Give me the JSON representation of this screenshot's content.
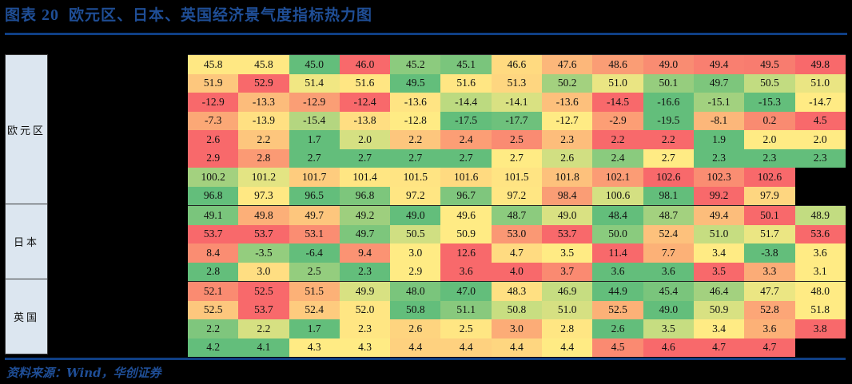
{
  "header": {
    "prefix": "图表",
    "number": "20",
    "title": "欧元区、日本、英国经济景气度指标热力图"
  },
  "source": "资料来源：Wind，华创证券",
  "colors": {
    "title_blue": "#1f4e96",
    "rule_blue": "#0f3f85",
    "label_bg": "#dce6f0",
    "heat_low_green": "#63be7b",
    "heat_mid_yellow": "#ffeb84",
    "heat_high_red": "#f8696b"
  },
  "regions": [
    {
      "name": "欧元区",
      "rows": 8
    },
    {
      "name": "日本",
      "rows": 4
    },
    {
      "name": "英国",
      "rows": 4
    }
  ],
  "chart_data": {
    "type": "heatmap",
    "title": "欧元区、日本、英国经济景气度指标热力图",
    "row_groups": [
      "欧元区",
      "日本",
      "英国"
    ],
    "columns": 13,
    "legend": "green = low, yellow = mid, red = high (per-row color scale)",
    "rows": [
      {
        "group": "欧元区",
        "values": [
          45.8,
          45.8,
          45.0,
          46.0,
          45.2,
          45.1,
          46.6,
          47.6,
          48.6,
          49.0,
          49.4,
          49.5,
          49.8
        ]
      },
      {
        "group": "欧元区",
        "values": [
          51.9,
          52.9,
          51.4,
          51.6,
          49.5,
          51.6,
          51.3,
          50.2,
          51.0,
          50.1,
          49.7,
          50.5,
          51.0
        ]
      },
      {
        "group": "欧元区",
        "values": [
          -12.9,
          -13.3,
          -12.9,
          -12.4,
          -13.6,
          -14.4,
          -14.1,
          -13.6,
          -14.5,
          -16.6,
          -15.1,
          -15.3,
          -14.7
        ]
      },
      {
        "group": "欧元区",
        "values": [
          -7.3,
          -13.9,
          -15.4,
          -13.8,
          -12.8,
          -17.5,
          -17.7,
          -12.7,
          -2.9,
          -19.5,
          -8.1,
          0.2,
          4.5
        ]
      },
      {
        "group": "欧元区",
        "values": [
          2.6,
          2.2,
          1.7,
          2.0,
          2.2,
          2.4,
          2.5,
          2.3,
          2.2,
          2.2,
          1.9,
          2.0,
          2.0
        ]
      },
      {
        "group": "欧元区",
        "values": [
          2.9,
          2.8,
          2.7,
          2.7,
          2.7,
          2.7,
          2.7,
          2.6,
          2.4,
          2.7,
          2.3,
          2.3,
          2.3
        ]
      },
      {
        "group": "欧元区",
        "values": [
          100.2,
          101.2,
          101.7,
          101.4,
          101.5,
          101.6,
          101.5,
          101.8,
          102.1,
          102.6,
          102.3,
          102.6,
          null
        ]
      },
      {
        "group": "欧元区",
        "values": [
          96.8,
          97.3,
          96.5,
          96.8,
          97.2,
          96.7,
          97.2,
          98.4,
          100.6,
          98.1,
          99.2,
          97.9,
          null
        ]
      },
      {
        "group": "日本",
        "values": [
          49.1,
          49.8,
          49.7,
          49.2,
          49.0,
          49.6,
          48.7,
          49.0,
          48.4,
          48.7,
          49.4,
          50.1,
          48.9
        ]
      },
      {
        "group": "日本",
        "values": [
          53.7,
          53.7,
          53.1,
          49.7,
          50.5,
          50.9,
          53.0,
          53.7,
          50.0,
          52.4,
          51.0,
          51.7,
          53.6
        ]
      },
      {
        "group": "日本",
        "values": [
          8.4,
          -3.5,
          -6.4,
          9.4,
          3.0,
          12.6,
          4.7,
          3.5,
          11.4,
          7.7,
          3.4,
          -3.8,
          3.6
        ]
      },
      {
        "group": "日本",
        "values": [
          2.8,
          3.0,
          2.5,
          2.3,
          2.9,
          3.6,
          4.0,
          3.7,
          3.6,
          3.6,
          3.5,
          3.3,
          3.1
        ]
      },
      {
        "group": "英国",
        "values": [
          52.1,
          52.5,
          51.5,
          49.9,
          48.0,
          47.0,
          48.3,
          46.9,
          44.9,
          45.4,
          46.4,
          47.7,
          48.0
        ]
      },
      {
        "group": "英国",
        "values": [
          52.5,
          53.7,
          52.4,
          52.0,
          50.8,
          51.1,
          50.8,
          51.0,
          52.5,
          49.0,
          50.9,
          52.8,
          51.8
        ]
      },
      {
        "group": "英国",
        "values": [
          2.2,
          2.2,
          1.7,
          2.3,
          2.6,
          2.5,
          3.0,
          2.8,
          2.6,
          3.5,
          3.4,
          3.6,
          3.8
        ]
      },
      {
        "group": "英国",
        "values": [
          4.2,
          4.1,
          4.3,
          4.3,
          4.4,
          4.4,
          4.4,
          4.4,
          4.5,
          4.6,
          4.7,
          4.7,
          null
        ]
      }
    ],
    "cell_colors": [
      [
        "#ffe883",
        "#ffe883",
        "#63be7b",
        "#f8696b",
        "#8ccb7e",
        "#7ac57c",
        "#ffda80",
        "#fcb77a",
        "#fa9d75",
        "#f98c72",
        "#f97f70",
        "#f87c6f",
        "#f8696b"
      ],
      [
        "#fdc77d",
        "#f8696b",
        "#f1e783",
        "#ffe683",
        "#63be7b",
        "#ffe683",
        "#fed680",
        "#a3d17f",
        "#eae583",
        "#96cd7e",
        "#7dc67c",
        "#c2dc81",
        "#eae583"
      ],
      [
        "#f8696b",
        "#fcbc7b",
        "#fa9e75",
        "#f8696b",
        "#ffe483",
        "#bcda80",
        "#d9e182",
        "#fdc07c",
        "#f8696b",
        "#63be7b",
        "#a2d17f",
        "#63be7b",
        "#ffeb84"
      ],
      [
        "#fba876",
        "#ffe082",
        "#b4d680",
        "#ffde82",
        "#ffeb84",
        "#63be7b",
        "#6ec17c",
        "#ffeb84",
        "#fc9e75",
        "#63be7b",
        "#fcb77a",
        "#f98b71",
        "#f8696b"
      ],
      [
        "#f8696b",
        "#fdc67d",
        "#63be7b",
        "#d5e082",
        "#fdc67d",
        "#fc9e75",
        "#fa8b72",
        "#fdbd7b",
        "#f8696b",
        "#f8696b",
        "#63be7b",
        "#ffeb84",
        "#ffeb84"
      ],
      [
        "#f8696b",
        "#fb9a74",
        "#63be7b",
        "#63be7b",
        "#63be7b",
        "#63be7b",
        "#ffeb84",
        "#d1df82",
        "#8acb7e",
        "#ffeb84",
        "#63be7b",
        "#63be7b",
        "#63be7b"
      ],
      [
        "#a3d17f",
        "#e3e483",
        "#fecc7e",
        "#ffe683",
        "#ffe483",
        "#ffda80",
        "#ffe483",
        "#fdc17c",
        "#fb9c75",
        "#f8696b",
        "#fa8d72",
        "#f8696b",
        "#000000"
      ],
      [
        "#63be7b",
        "#ffe883",
        "#63be7b",
        "#7dc67c",
        "#ffe683",
        "#7fc67d",
        "#ffe683",
        "#fa9d75",
        "#d4e082",
        "#63be7b",
        "#f8696b",
        "#fed680",
        "#000000"
      ],
      [
        "#7ac57c",
        "#fcaf78",
        "#fdc67d",
        "#9ecf7e",
        "#63be7b",
        "#ffeb84",
        "#8ccb7e",
        "#d9e182",
        "#63be7b",
        "#a3d17f",
        "#fcbd7b",
        "#f8696b",
        "#c2dc81"
      ],
      [
        "#f8696b",
        "#f8696b",
        "#fa8d72",
        "#7dc67c",
        "#d0df82",
        "#ffeb84",
        "#fa9874",
        "#f8696b",
        "#8acb7e",
        "#fdc17c",
        "#c6dd81",
        "#ebe683",
        "#f8696b"
      ],
      [
        "#fa8d72",
        "#94cd7e",
        "#63be7b",
        "#fb9373",
        "#ffeb84",
        "#f8696b",
        "#ffdb81",
        "#ffeb84",
        "#f8696b",
        "#fcb177",
        "#ffeb84",
        "#63be7b",
        "#ffeb84"
      ],
      [
        "#63be7b",
        "#ffde82",
        "#94cd7e",
        "#63be7b",
        "#ffeb84",
        "#f8696b",
        "#f8696b",
        "#fa8a71",
        "#63be7b",
        "#63be7b",
        "#f8696b",
        "#fbac77",
        "#ffeb84"
      ],
      [
        "#fa8b71",
        "#f8696b",
        "#fcb177",
        "#d8e182",
        "#7ac57c",
        "#63be7b",
        "#ffe082",
        "#c6dd81",
        "#63be7b",
        "#7ac57c",
        "#a3d17f",
        "#ebe683",
        "#ffeb84"
      ],
      [
        "#fdc77d",
        "#f8696b",
        "#fecb7e",
        "#ffe683",
        "#63be7b",
        "#88c97d",
        "#c8de81",
        "#d6e082",
        "#fcb177",
        "#63be7b",
        "#d8e182",
        "#fca677",
        "#ffeb84"
      ],
      [
        "#7fc67d",
        "#d6e082",
        "#63be7b",
        "#ffe683",
        "#fed47f",
        "#ffe683",
        "#fcac77",
        "#ffe683",
        "#63be7b",
        "#c6dd81",
        "#ffeb84",
        "#fcb177",
        "#f8696b"
      ],
      [
        "#63be7b",
        "#63be7b",
        "#ffeb84",
        "#ffeb84",
        "#fed17f",
        "#fed17f",
        "#fed680",
        "#ffeb84",
        "#fa8a71",
        "#f8696b",
        "#f8696b",
        "#f8696b",
        "#000000"
      ]
    ]
  }
}
